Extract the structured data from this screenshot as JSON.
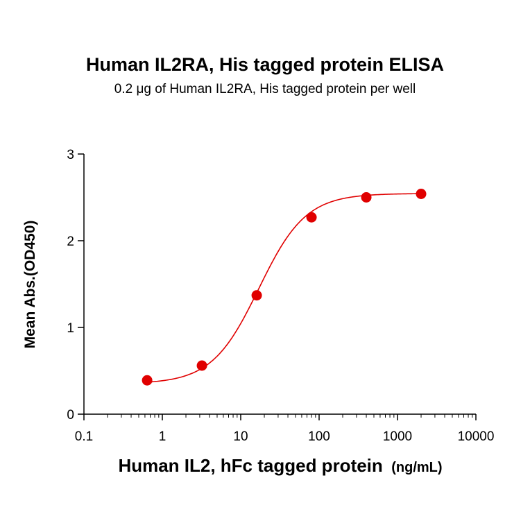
{
  "chart_data": {
    "type": "scatter",
    "title": "Human IL2RA, His tagged protein ELISA",
    "subtitle": "0.2 μg of Human IL2RA, His tagged protein per well",
    "xlabel": "Human IL2, hFc tagged protein",
    "xlabel_unit": "(ng/mL)",
    "ylabel": "Mean Abs.(OD450)",
    "x_scale": "log",
    "xlim": [
      0.1,
      10000
    ],
    "ylim": [
      0,
      3
    ],
    "x_ticks": [
      "0.1",
      "1",
      "10",
      "100",
      "1000",
      "10000"
    ],
    "y_ticks": [
      "0",
      "1",
      "2",
      "3"
    ],
    "grid": false,
    "series": [
      {
        "color": "#e00000",
        "fit": "4PL sigmoid",
        "points": [
          {
            "x": 0.64,
            "y": 0.39
          },
          {
            "x": 3.2,
            "y": 0.56
          },
          {
            "x": 16,
            "y": 1.37
          },
          {
            "x": 80,
            "y": 2.27
          },
          {
            "x": 400,
            "y": 2.5
          },
          {
            "x": 2000,
            "y": 2.54
          }
        ]
      }
    ]
  }
}
